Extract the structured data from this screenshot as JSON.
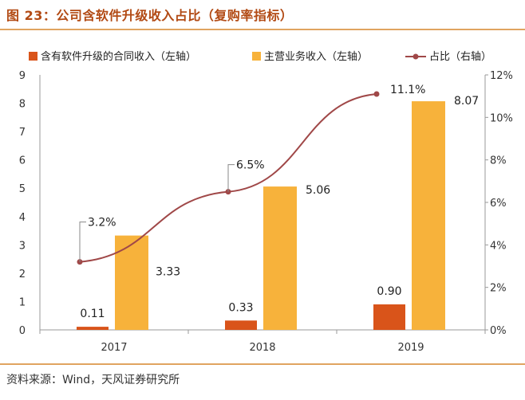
{
  "header": {
    "title": "图 23：公司含软件升级收入占比（复购率指标）"
  },
  "footer": {
    "source": "资料来源：Wind，天风证券研究所"
  },
  "colors": {
    "bar1": "#d9541a",
    "bar2": "#f7b23b",
    "line": "#a04848",
    "title": "#b24a14"
  },
  "chart_data": {
    "type": "bar",
    "categories": [
      "2017",
      "2018",
      "2019"
    ],
    "series": [
      {
        "name": "含有软件升级的合同收入（左轴）",
        "type": "bar",
        "axis": "left",
        "values": [
          0.11,
          0.33,
          0.9
        ],
        "labels": [
          "0.11",
          "0.33",
          "0.90"
        ]
      },
      {
        "name": "主营业务收入（左轴）",
        "type": "bar",
        "axis": "left",
        "values": [
          3.33,
          5.06,
          8.07
        ],
        "labels": [
          "3.33",
          "5.06",
          "8.07"
        ]
      },
      {
        "name": "占比（右轴）",
        "type": "line",
        "axis": "right",
        "values": [
          3.2,
          6.5,
          11.1
        ],
        "labels": [
          "3.2%",
          "6.5%",
          "11.1%"
        ]
      }
    ],
    "yleft": {
      "ticks": [
        "0",
        "1",
        "2",
        "3",
        "4",
        "5",
        "6",
        "7",
        "8",
        "9"
      ],
      "range": [
        0,
        9
      ]
    },
    "yright": {
      "ticks": [
        "0%",
        "2%",
        "4%",
        "6%",
        "8%",
        "10%",
        "12%"
      ],
      "range": [
        0,
        12
      ]
    },
    "legend": "top"
  }
}
